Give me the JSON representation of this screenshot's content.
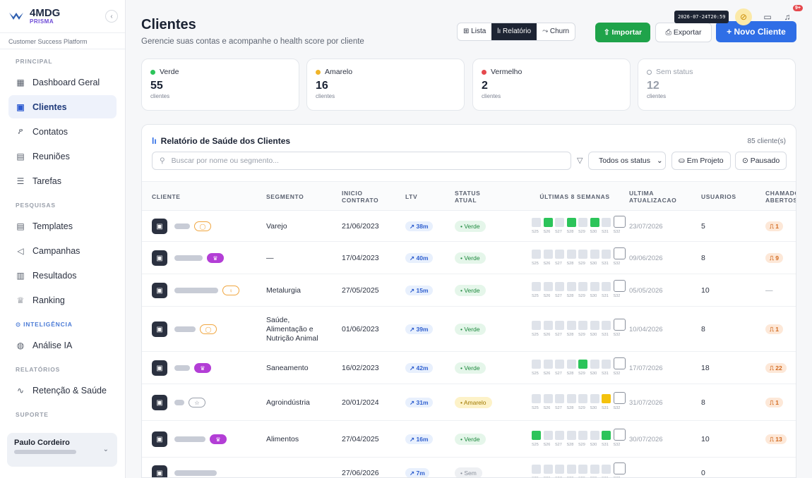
{
  "brand": {
    "name": "4MDG",
    "sub": "PRISMA",
    "platform": "Customer Success Platform"
  },
  "sidebar": {
    "sections": [
      {
        "title": "PRINCIPAL",
        "items": [
          {
            "label": "Dashboard Geral",
            "icon": "grid-icon"
          },
          {
            "label": "Clientes",
            "icon": "building-icon",
            "active": true
          },
          {
            "label": "Contatos",
            "icon": "users-icon"
          },
          {
            "label": "Reuniões",
            "icon": "calendar-icon"
          },
          {
            "label": "Tarefas",
            "icon": "list-check-icon"
          }
        ]
      },
      {
        "title": "PESQUISAS",
        "items": [
          {
            "label": "Templates",
            "icon": "file-icon"
          },
          {
            "label": "Campanhas",
            "icon": "send-icon"
          },
          {
            "label": "Resultados",
            "icon": "clipboard-icon"
          },
          {
            "label": "Ranking",
            "icon": "trophy-icon"
          }
        ]
      },
      {
        "title": "⊙ INTELIGÊNCIA",
        "items": [
          {
            "label": "Análise IA",
            "icon": "brain-icon"
          }
        ]
      },
      {
        "title": "RELATÓRIOS",
        "items": [
          {
            "label": "Retenção & Saúde",
            "icon": "activity-icon"
          }
        ]
      },
      {
        "title": "SUPORTE",
        "items": []
      }
    ],
    "user": {
      "name": "Paulo Cordeiro"
    }
  },
  "header": {
    "title": "Clientes",
    "subtitle": "Gerencie suas contas e acompanhe o health score por cliente",
    "view_tabs": [
      "⊞ Lista",
      "lı Relatório",
      "⤳ Churn"
    ],
    "active_view": 1,
    "import_label": "⇧ Importar",
    "export_label": "⎙ Exportar",
    "new_label": "+ Novo Cliente",
    "timestamp": "2026-07-24T20:59",
    "notif_badge": "9+"
  },
  "status_cards": [
    {
      "label": "Verde",
      "value": "55",
      "note": "clientes",
      "color": "#2cc45a"
    },
    {
      "label": "Amarelo",
      "value": "16",
      "note": "clientes",
      "color": "#f0b429"
    },
    {
      "label": "Vermelho",
      "value": "2",
      "note": "clientes",
      "color": "#e5484d"
    },
    {
      "label": "Sem status",
      "value": "12",
      "note": "clientes",
      "color": "#9aa0ab"
    }
  ],
  "report": {
    "title": "Relatório de Saúde dos Clientes",
    "count": "85 cliente(s)",
    "search_placeholder": "Buscar por nome ou segmento...",
    "status_filter": "Todos os status",
    "chip_project": "⛀ Em Projeto",
    "chip_paused": "⊙ Pausado",
    "columns": [
      "CLIENTE",
      "SEGMENTO",
      "INICIO CONTRATO",
      "LTV",
      "STATUS ATUAL",
      "ÚLTIMAS 8 SEMANAS",
      "ULTIMA ATUALIZACAO",
      "USUARIOS",
      "CHAMADOS ABERTOS"
    ],
    "week_labels": [
      "S25",
      "S26",
      "S27",
      "S28",
      "S29",
      "S30",
      "S31",
      "S32"
    ],
    "rows": [
      {
        "tag": "orange",
        "tag_icon": "◯",
        "segment": "Varejo",
        "start": "21/06/2023",
        "ltv": "↗ 38m",
        "status": "Verde",
        "weeks": [
          "n",
          "g",
          "n",
          "g",
          "n",
          "g",
          "n",
          "c"
        ],
        "updated": "23/07/2026",
        "users": "5",
        "tickets": "⎍ 1"
      },
      {
        "tag": "purple",
        "tag_icon": "♛",
        "segment": "—",
        "start": "17/04/2023",
        "ltv": "↗ 40m",
        "status": "Verde",
        "weeks": [
          "n",
          "n",
          "n",
          "n",
          "n",
          "n",
          "n",
          "c"
        ],
        "updated": "09/06/2026",
        "users": "8",
        "tickets": "⎍ 9"
      },
      {
        "tag": "orange",
        "tag_icon": "♀",
        "segment": "Metalurgia",
        "start": "27/05/2025",
        "ltv": "↗ 15m",
        "status": "Verde",
        "weeks": [
          "n",
          "n",
          "n",
          "n",
          "n",
          "n",
          "n",
          "c"
        ],
        "updated": "05/05/2026",
        "users": "10",
        "tickets": "—"
      },
      {
        "tag": "orange",
        "tag_icon": "◯",
        "segment": "Saúde, Alimentação e Nutrição Animal",
        "start": "01/06/2023",
        "ltv": "↗ 39m",
        "status": "Verde",
        "weeks": [
          "n",
          "n",
          "n",
          "n",
          "n",
          "n",
          "n",
          "c"
        ],
        "updated": "10/04/2026",
        "users": "8",
        "tickets": "⎍ 1"
      },
      {
        "tag": "purple",
        "tag_icon": "♛",
        "segment": "Saneamento",
        "start": "16/02/2023",
        "ltv": "↗ 42m",
        "status": "Verde",
        "weeks": [
          "n",
          "n",
          "n",
          "n",
          "g",
          "n",
          "n",
          "c"
        ],
        "updated": "17/07/2026",
        "users": "18",
        "tickets": "⎍ 22"
      },
      {
        "tag": "gray",
        "tag_icon": "☆",
        "segment": "Agroindústria",
        "start": "20/01/2024",
        "ltv": "↗ 31m",
        "status": "Amarelo",
        "weeks": [
          "n",
          "n",
          "n",
          "n",
          "n",
          "n",
          "y",
          "c"
        ],
        "updated": "31/07/2026",
        "users": "8",
        "tickets": "⎍ 1"
      },
      {
        "tag": "purple",
        "tag_icon": "♛",
        "segment": "Alimentos",
        "start": "27/04/2025",
        "ltv": "↗ 16m",
        "status": "Verde",
        "weeks": [
          "g",
          "n",
          "n",
          "n",
          "n",
          "n",
          "g",
          "c"
        ],
        "updated": "30/07/2026",
        "users": "10",
        "tickets": "⎍ 13"
      },
      {
        "tag": "",
        "tag_icon": "",
        "segment": "",
        "start": "27/06/2026",
        "ltv": "↗ 7m",
        "status": "Sem",
        "weeks": [
          "n",
          "n",
          "n",
          "n",
          "n",
          "n",
          "n",
          "c"
        ],
        "updated": "",
        "users": "0",
        "tickets": ""
      }
    ]
  }
}
